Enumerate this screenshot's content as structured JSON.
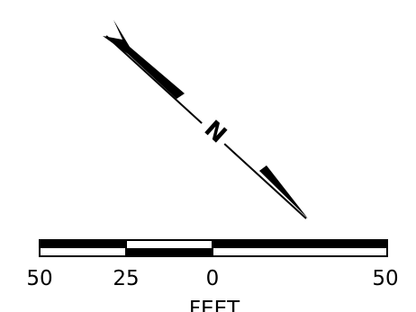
{
  "north_arrow": {
    "label": "N",
    "icon": "north-arrow-icon"
  },
  "scale_bar": {
    "ticks": [
      "50",
      "25",
      "0",
      "50"
    ],
    "unit": "FEET"
  },
  "colors": {
    "ink": "#000000",
    "paper": "#ffffff"
  }
}
